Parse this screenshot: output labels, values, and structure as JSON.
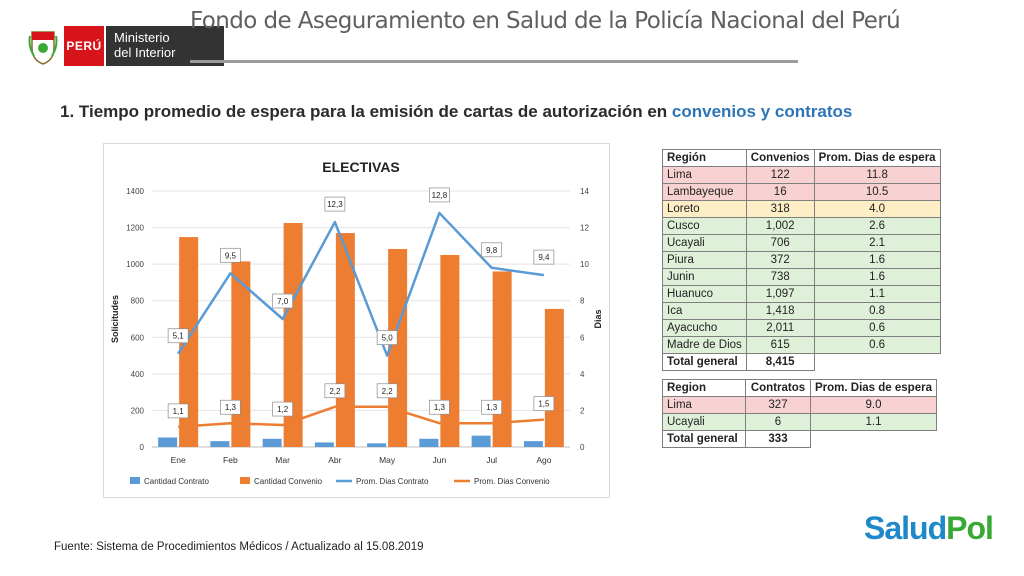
{
  "header": {
    "brand_peru": "PERÚ",
    "ministry_line1": "Ministerio",
    "ministry_line2": "del Interior",
    "title": "Fondo de Aseguramiento en Salud de la Policía Nacional del Perú"
  },
  "section": {
    "title_prefix": "1. Tiempo promedio de espera para la emisión de cartas de autorización en ",
    "title_highlight": "convenios y contratos"
  },
  "colors": {
    "contrato": "#5b9bd5",
    "convenio": "#ed7d31",
    "highlight": "#2e75b6"
  },
  "chart_data": {
    "type": "bar",
    "title": "ELECTIVAS",
    "categories": [
      "Ene",
      "Feb",
      "Mar",
      "Abr",
      "May",
      "Jun",
      "Jul",
      "Ago"
    ],
    "ylabel": "Solicitudes",
    "y2label": "Dias",
    "ylim": [
      0,
      1400
    ],
    "y2lim": [
      0,
      14
    ],
    "yticks": [
      "0",
      "200",
      "400",
      "600",
      "800",
      "1000",
      "1200",
      "1400"
    ],
    "y2ticks": [
      "0",
      "2",
      "4",
      "6",
      "8",
      "10",
      "12",
      "14"
    ],
    "series": [
      {
        "name": "Cantidad Contrato",
        "type": "bar",
        "axis": "left",
        "color": "#5b9bd5",
        "values": [
          52,
          32,
          45,
          25,
          20,
          45,
          62,
          32
        ]
      },
      {
        "name": "Cantidad Convenio",
        "type": "bar",
        "axis": "left",
        "color": "#ed7d31",
        "values": [
          1148,
          1015,
          1225,
          1170,
          1083,
          1050,
          960,
          755
        ]
      },
      {
        "name": "Prom. Dias Contrato",
        "type": "line",
        "axis": "right",
        "color": "#5b9bd5",
        "values": [
          5.1,
          9.5,
          7.0,
          12.3,
          5.0,
          12.8,
          9.8,
          9.4
        ],
        "labels": [
          "5,1",
          "9,5",
          "7,0",
          "12,3",
          "5,0",
          "12,8",
          "9,8",
          "9,4"
        ]
      },
      {
        "name": "Prom. Dias Convenio",
        "type": "line",
        "axis": "right",
        "color": "#ed7d31",
        "values": [
          1.1,
          1.3,
          1.2,
          2.2,
          2.2,
          1.3,
          1.3,
          1.5
        ],
        "labels": [
          "1,1",
          "1,3",
          "1,2",
          "2,2",
          "2,2",
          "1,3",
          "1,3",
          "1,5"
        ]
      }
    ],
    "legend": [
      "Cantidad Contrato",
      "Cantidad Convenio",
      "Prom. Dias Contrato",
      "Prom. Dias Convenio"
    ]
  },
  "table_convenios": {
    "headers": [
      "Región",
      "Convenios",
      "Prom. Dias de espera"
    ],
    "rows": [
      {
        "region": "Lima",
        "count": "122",
        "days": "11.8",
        "level": "red"
      },
      {
        "region": "Lambayeque",
        "count": "16",
        "days": "10.5",
        "level": "red"
      },
      {
        "region": "Loreto",
        "count": "318",
        "days": "4.0",
        "level": "yellow"
      },
      {
        "region": "Cusco",
        "count": "1,002",
        "days": "2.6",
        "level": "green"
      },
      {
        "region": "Ucayali",
        "count": "706",
        "days": "2.1",
        "level": "green"
      },
      {
        "region": "Piura",
        "count": "372",
        "days": "1.6",
        "level": "green"
      },
      {
        "region": "Junin",
        "count": "738",
        "days": "1.6",
        "level": "green"
      },
      {
        "region": "Huanuco",
        "count": "1,097",
        "days": "1.1",
        "level": "green"
      },
      {
        "region": "Ica",
        "count": "1,418",
        "days": "0.8",
        "level": "green"
      },
      {
        "region": "Ayacucho",
        "count": "2,011",
        "days": "0.6",
        "level": "green"
      },
      {
        "region": "Madre de Dios",
        "count": "615",
        "days": "0.6",
        "level": "green"
      }
    ],
    "total_label": "Total general",
    "total_value": "8,415"
  },
  "table_contratos": {
    "headers": [
      "Region",
      "Contratos",
      "Prom. Dias de espera"
    ],
    "rows": [
      {
        "region": "Lima",
        "count": "327",
        "days": "9.0",
        "level": "red"
      },
      {
        "region": "Ucayali",
        "count": "6",
        "days": "1.1",
        "level": "green"
      }
    ],
    "total_label": "Total general",
    "total_value": "333"
  },
  "footer": {
    "source": "Fuente: Sistema de Procedimientos Médicos / Actualizado al 15.08.2019"
  },
  "logo": {
    "part1": "Salud",
    "part2": "Pol"
  }
}
